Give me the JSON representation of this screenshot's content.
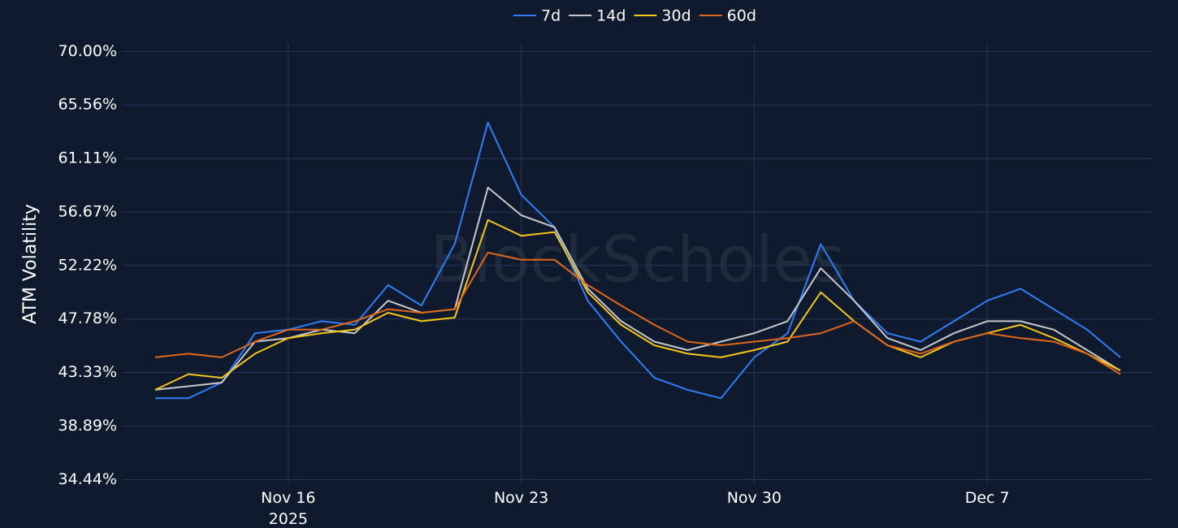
{
  "chart_data": {
    "type": "line",
    "y_axis_label": "ATM Volatility",
    "watermark": "BlockScholes",
    "x": [
      "2025-11-12",
      "2025-11-13",
      "2025-11-14",
      "2025-11-15",
      "2025-11-16",
      "2025-11-17",
      "2025-11-18",
      "2025-11-19",
      "2025-11-20",
      "2025-11-21",
      "2025-11-22",
      "2025-11-23",
      "2025-11-24",
      "2025-11-25",
      "2025-11-26",
      "2025-11-27",
      "2025-11-28",
      "2025-11-29",
      "2025-11-30",
      "2025-12-01",
      "2025-12-02",
      "2025-12-03",
      "2025-12-04",
      "2025-12-05",
      "2025-12-06",
      "2025-12-07",
      "2025-12-08",
      "2025-12-09",
      "2025-12-10",
      "2025-12-11"
    ],
    "xlim": [
      "2025-11-11",
      "2025-12-12"
    ],
    "xticks": [
      {
        "value": "2025-11-16",
        "label": "Nov 16\n2025"
      },
      {
        "value": "2025-11-23",
        "label": "Nov 23"
      },
      {
        "value": "2025-11-30",
        "label": "Nov 30"
      },
      {
        "value": "2025-12-07",
        "label": "Dec 7"
      }
    ],
    "ylim": [
      34.0,
      70.7
    ],
    "yticks": [
      {
        "value": 34.44,
        "label": "34.44%"
      },
      {
        "value": 38.89,
        "label": "38.89%"
      },
      {
        "value": 43.33,
        "label": "43.33%"
      },
      {
        "value": 47.78,
        "label": "47.78%"
      },
      {
        "value": 52.22,
        "label": "52.22%"
      },
      {
        "value": 56.67,
        "label": "56.67%"
      },
      {
        "value": 61.11,
        "label": "61.11%"
      },
      {
        "value": 65.56,
        "label": "65.56%"
      },
      {
        "value": 70.0,
        "label": "70.00%"
      }
    ],
    "grid": true,
    "legend": "top",
    "series": [
      {
        "name": "7d",
        "color": "#2f7ef5",
        "values": [
          41.2,
          41.2,
          42.5,
          46.6,
          46.9,
          47.6,
          47.3,
          50.6,
          48.9,
          54.0,
          64.1,
          58.1,
          55.4,
          49.3,
          45.9,
          42.9,
          41.9,
          41.2,
          44.6,
          46.6,
          54.0,
          49.3,
          46.6,
          45.9,
          47.6,
          49.3,
          50.3,
          48.6,
          46.9,
          44.6
        ]
      },
      {
        "name": "14d",
        "color": "#c8c8c8",
        "values": [
          41.9,
          42.2,
          42.5,
          45.9,
          46.2,
          46.9,
          46.6,
          49.3,
          48.3,
          48.6,
          58.7,
          56.4,
          55.4,
          50.3,
          47.6,
          45.9,
          45.2,
          45.9,
          46.6,
          47.6,
          52.0,
          49.3,
          46.2,
          45.2,
          46.6,
          47.6,
          47.6,
          46.9,
          45.2,
          43.5
        ]
      },
      {
        "name": "30d",
        "color": "#f5c518",
        "values": [
          41.9,
          43.2,
          42.9,
          44.9,
          46.2,
          46.6,
          46.9,
          48.3,
          47.6,
          47.9,
          56.0,
          54.7,
          55.0,
          50.0,
          47.3,
          45.6,
          44.9,
          44.6,
          45.2,
          45.9,
          50.0,
          47.6,
          45.6,
          44.6,
          45.9,
          46.6,
          47.3,
          46.2,
          44.9,
          43.5
        ]
      },
      {
        "name": "60d",
        "color": "#e0661a",
        "values": [
          44.6,
          44.9,
          44.6,
          45.9,
          46.9,
          46.9,
          47.6,
          48.6,
          48.3,
          48.6,
          53.3,
          52.7,
          52.7,
          50.6,
          48.9,
          47.3,
          45.9,
          45.6,
          45.9,
          46.2,
          46.6,
          47.6,
          45.6,
          44.9,
          45.9,
          46.6,
          46.2,
          45.9,
          44.9,
          43.2
        ]
      }
    ]
  }
}
